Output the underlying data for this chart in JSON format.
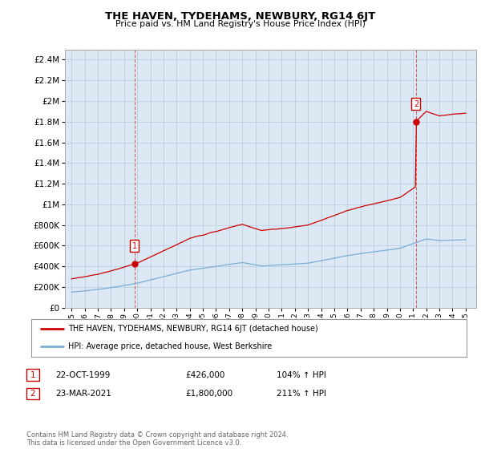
{
  "title": "THE HAVEN, TYDEHAMS, NEWBURY, RG14 6JT",
  "subtitle": "Price paid vs. HM Land Registry's House Price Index (HPI)",
  "ylim": [
    0,
    2500000
  ],
  "yticks": [
    0,
    200000,
    400000,
    600000,
    800000,
    1000000,
    1200000,
    1400000,
    1600000,
    1800000,
    2000000,
    2200000,
    2400000
  ],
  "hpi_color": "#7aadd4",
  "price_color": "#cc0000",
  "chart_bg": "#dce9f5",
  "sale1_year": 1999.79,
  "sale1_price": 426000,
  "sale2_year": 2021.22,
  "sale2_price": 1800000,
  "legend_label1": "THE HAVEN, TYDEHAMS, NEWBURY, RG14 6JT (detached house)",
  "legend_label2": "HPI: Average price, detached house, West Berkshire",
  "table_row1": [
    "1",
    "22-OCT-1999",
    "£426,000",
    "104% ↑ HPI"
  ],
  "table_row2": [
    "2",
    "23-MAR-2021",
    "£1,800,000",
    "211% ↑ HPI"
  ],
  "footer": "Contains HM Land Registry data © Crown copyright and database right 2024.\nThis data is licensed under the Open Government Licence v3.0.",
  "background_color": "#ffffff",
  "grid_color": "#bbcfe0"
}
